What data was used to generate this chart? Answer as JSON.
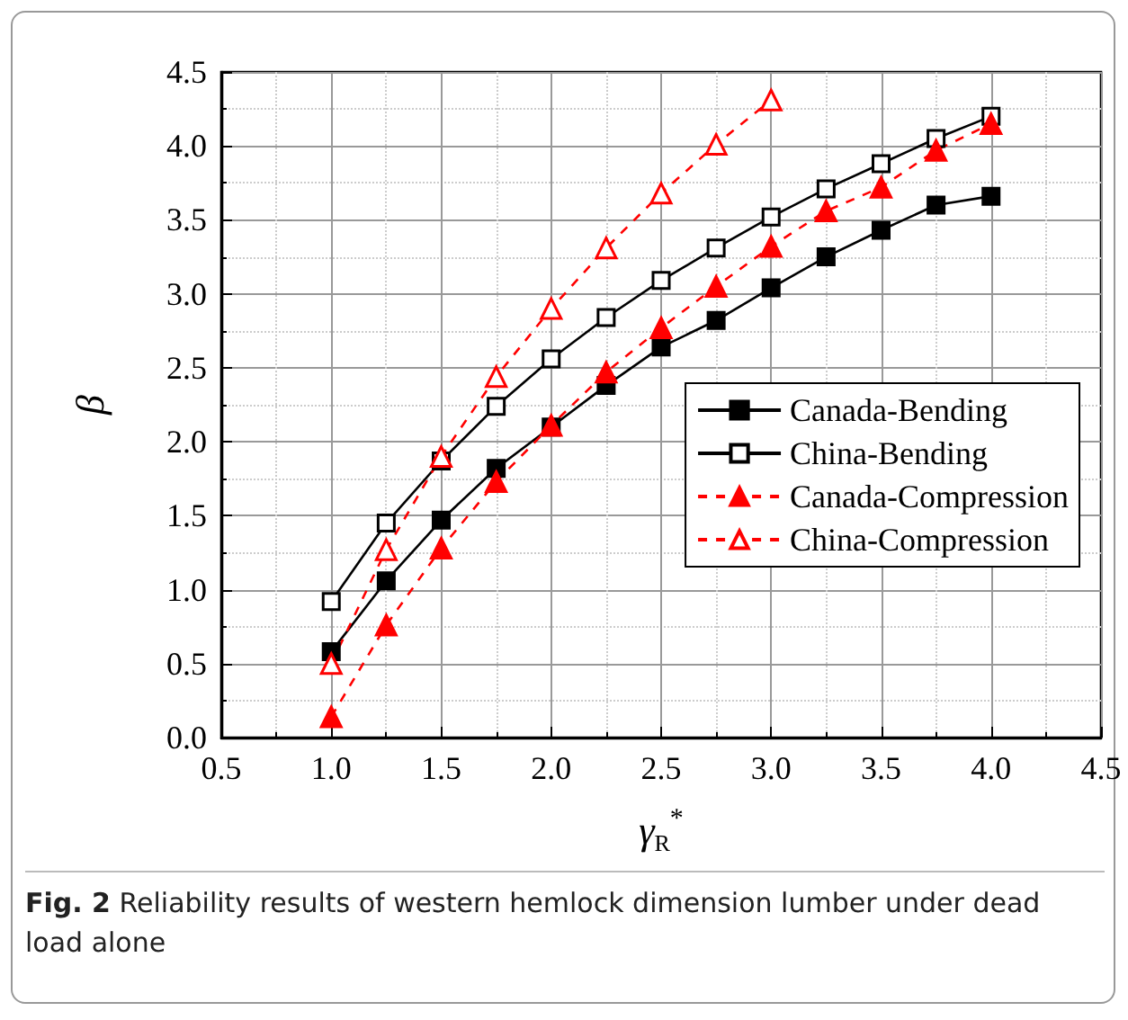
{
  "chart_data": {
    "type": "line",
    "xlabel": "γ$_{R}$$^{*}$",
    "ylabel": "β",
    "annotations": [
      "Fig. 2  Reliability results of western hemlock dimension lumber under dead load alone"
    ],
    "xlim": [
      0.5,
      4.5
    ],
    "ylim": [
      0,
      4.5
    ],
    "xticks": [
      {
        "value": 0.5,
        "label": "0.5"
      },
      {
        "value": 1,
        "label": "1.0"
      },
      {
        "value": 1.5,
        "label": "1.5"
      },
      {
        "value": 2,
        "label": "2.0"
      },
      {
        "value": 2.5,
        "label": "2.5"
      },
      {
        "value": 3,
        "label": "3.0"
      },
      {
        "value": 3.5,
        "label": "3.5"
      },
      {
        "value": 4,
        "label": "4.0"
      },
      {
        "value": 4.5,
        "label": "4.5"
      }
    ],
    "yticks": [
      {
        "value": 0,
        "label": "0.0"
      },
      {
        "value": 0.5,
        "label": "0.5"
      },
      {
        "value": 1,
        "label": "1.0"
      },
      {
        "value": 1.5,
        "label": "1.5"
      },
      {
        "value": 2,
        "label": "2.0"
      },
      {
        "value": 2.5,
        "label": "2.5"
      },
      {
        "value": 3,
        "label": "3.0"
      },
      {
        "value": 3.5,
        "label": "3.5"
      },
      {
        "value": 4,
        "label": "4.0"
      },
      {
        "value": 4.5,
        "label": "4.5"
      }
    ],
    "grid": true,
    "legend": "bottom right",
    "series": [
      {
        "name": "Canada-Bending",
        "color": "#000000",
        "marker": "square",
        "line_style": "solid",
        "x": [
          1,
          1.25,
          1.5,
          1.75,
          2,
          2.25,
          2.5,
          2.75,
          3,
          3.25,
          3.5,
          3.75,
          4
        ],
        "values": [
          0.58,
          1.06,
          1.47,
          1.82,
          2.1,
          2.38,
          2.64,
          2.82,
          3.04,
          3.25,
          3.43,
          3.6,
          3.66
        ]
      },
      {
        "name": "China-Bending",
        "color": "#000000",
        "marker": "square",
        "line_style": "solid",
        "x": [
          1,
          1.25,
          1.5,
          1.75,
          2,
          2.25,
          2.5,
          2.75,
          3,
          3.25,
          3.5,
          3.75,
          4
        ],
        "values": [
          0.92,
          1.45,
          1.87,
          2.24,
          2.56,
          2.84,
          3.09,
          3.31,
          3.52,
          3.71,
          3.88,
          4.05,
          4.2
        ]
      },
      {
        "name": "Canada-Compression",
        "color": "#ff0000",
        "marker": "triangle",
        "line_style": "dashed",
        "x": [
          1,
          1.25,
          1.5,
          1.75,
          2,
          2.25,
          2.5,
          2.75,
          3,
          3.25,
          3.5,
          3.75,
          4
        ],
        "values": [
          0.14,
          0.76,
          1.28,
          1.73,
          2.11,
          2.47,
          2.77,
          3.05,
          3.32,
          3.56,
          3.72,
          3.97,
          4.15
        ]
      },
      {
        "name": "China-Compression",
        "color": "#ff0000",
        "marker": "triangle",
        "line_style": "dashed",
        "x": [
          1,
          1.25,
          1.5,
          1.75,
          2,
          2.25,
          2.5,
          2.75,
          3
        ],
        "values": [
          0.5,
          1.27,
          1.9,
          2.44,
          2.9,
          3.31,
          3.68,
          4.01,
          4.31
        ]
      }
    ]
  }
}
